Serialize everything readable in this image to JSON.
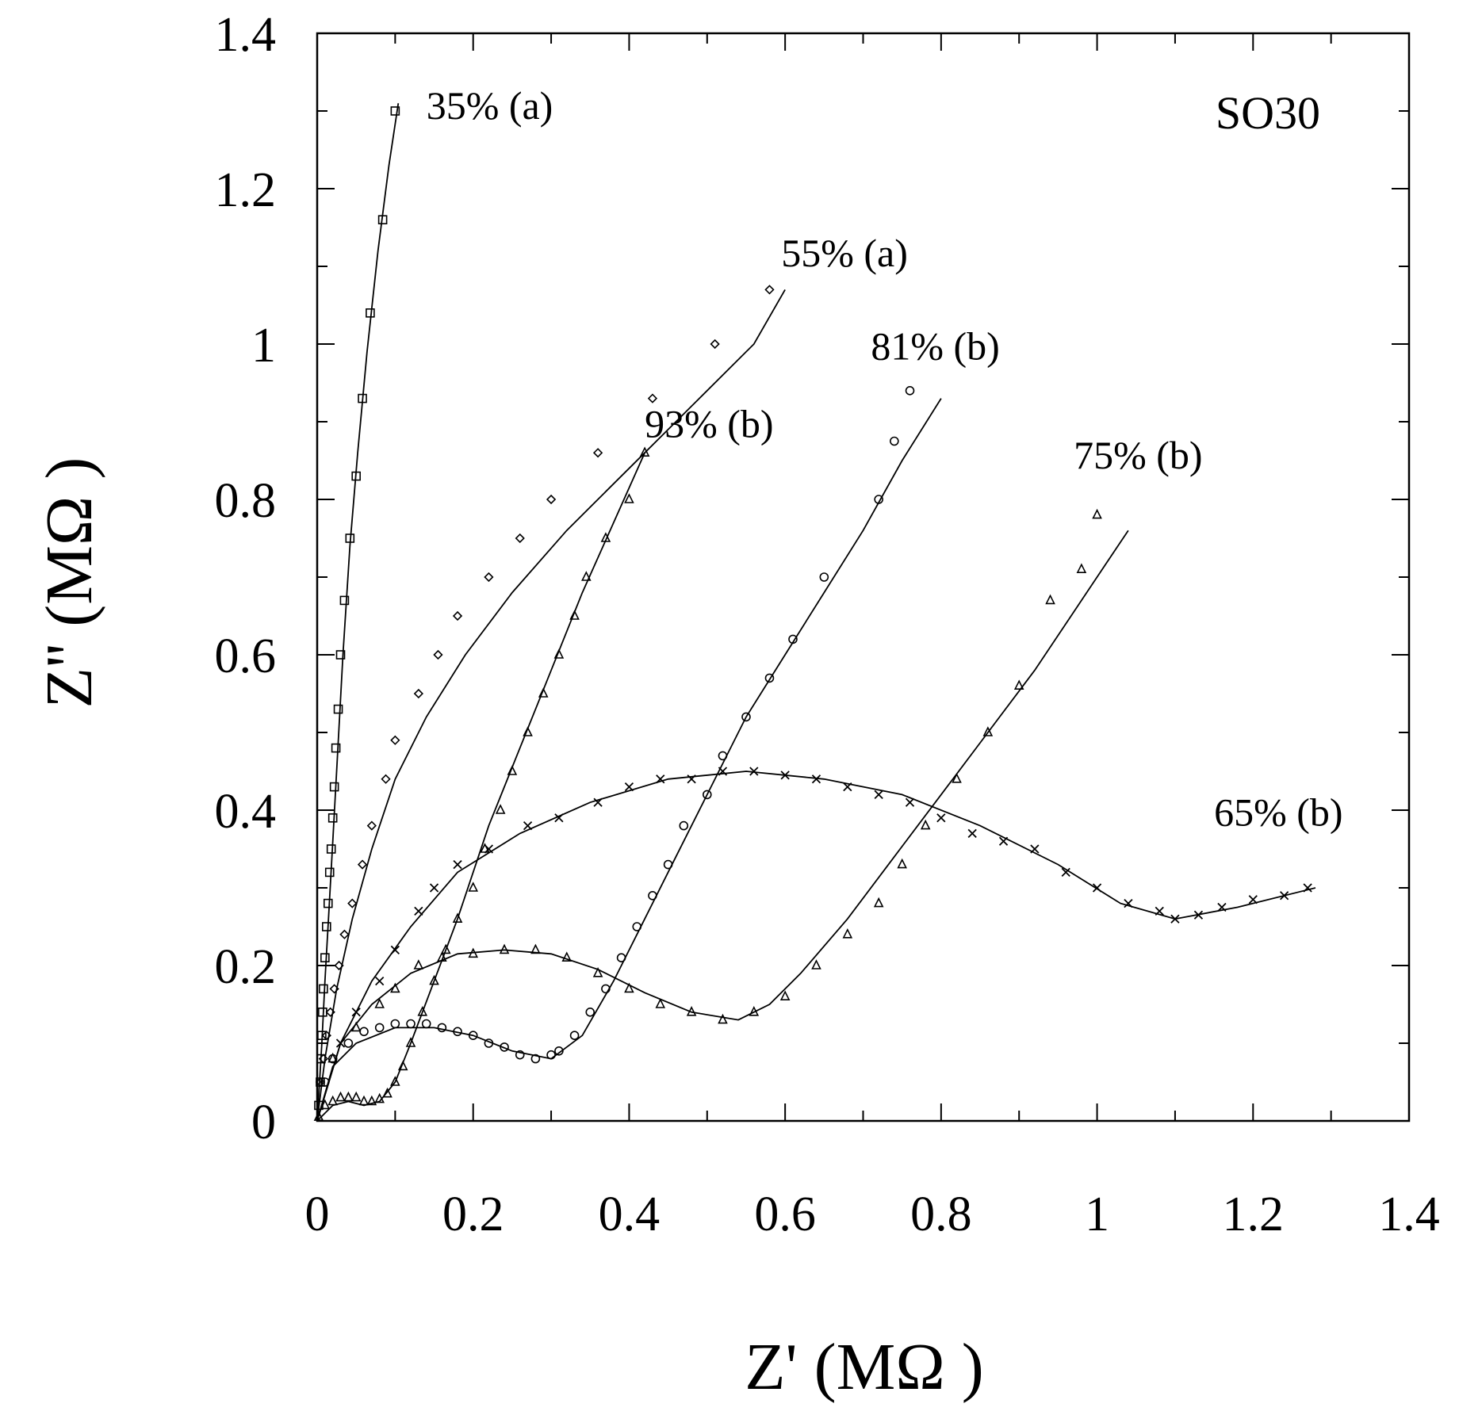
{
  "chart_data": {
    "type": "scatter",
    "title": "",
    "panel_label": "SO30",
    "xlabel": "Z' (MΩ )",
    "ylabel": "Z'' (MΩ )",
    "xlim": [
      0,
      1.4
    ],
    "ylim": [
      0,
      1.4
    ],
    "grid": false,
    "x_ticks": [
      0,
      0.2,
      0.4,
      0.6,
      0.8,
      1,
      1.2,
      1.4
    ],
    "x_tick_labels": [
      "0",
      "0.2",
      "0.4",
      "0.6",
      "0.8",
      "1",
      "1.2",
      "1.4"
    ],
    "y_ticks": [
      0,
      0.2,
      0.4,
      0.6,
      0.8,
      1,
      1.2,
      1.4
    ],
    "y_tick_labels": [
      "0",
      "0.2",
      "0.4",
      "0.6",
      "0.8",
      "1",
      "1.2",
      "1.4"
    ],
    "series": [
      {
        "name": "35% (a)",
        "marker": "square",
        "label_anchor": [
          0.14,
          1.29
        ],
        "points": [
          [
            0.002,
            0.02
          ],
          [
            0.004,
            0.05
          ],
          [
            0.005,
            0.08
          ],
          [
            0.006,
            0.11
          ],
          [
            0.007,
            0.14
          ],
          [
            0.008,
            0.17
          ],
          [
            0.01,
            0.21
          ],
          [
            0.012,
            0.25
          ],
          [
            0.014,
            0.28
          ],
          [
            0.016,
            0.32
          ],
          [
            0.018,
            0.35
          ],
          [
            0.02,
            0.39
          ],
          [
            0.022,
            0.43
          ],
          [
            0.024,
            0.48
          ],
          [
            0.027,
            0.53
          ],
          [
            0.03,
            0.6
          ],
          [
            0.035,
            0.67
          ],
          [
            0.042,
            0.75
          ],
          [
            0.05,
            0.83
          ],
          [
            0.058,
            0.93
          ],
          [
            0.068,
            1.04
          ],
          [
            0.084,
            1.16
          ],
          [
            0.1,
            1.3
          ]
        ],
        "curve": [
          [
            0,
            0
          ],
          [
            0.003,
            0.05
          ],
          [
            0.006,
            0.1
          ],
          [
            0.01,
            0.18
          ],
          [
            0.015,
            0.27
          ],
          [
            0.02,
            0.36
          ],
          [
            0.026,
            0.47
          ],
          [
            0.033,
            0.6
          ],
          [
            0.042,
            0.74
          ],
          [
            0.052,
            0.86
          ],
          [
            0.064,
            0.99
          ],
          [
            0.078,
            1.12
          ],
          [
            0.092,
            1.23
          ],
          [
            0.104,
            1.31
          ]
        ]
      },
      {
        "name": "55% (a)",
        "marker": "diamond",
        "label_anchor": [
          0.595,
          1.1
        ],
        "points": [
          [
            0.004,
            0.05
          ],
          [
            0.008,
            0.08
          ],
          [
            0.012,
            0.11
          ],
          [
            0.017,
            0.14
          ],
          [
            0.022,
            0.17
          ],
          [
            0.028,
            0.2
          ],
          [
            0.035,
            0.24
          ],
          [
            0.045,
            0.28
          ],
          [
            0.058,
            0.33
          ],
          [
            0.07,
            0.38
          ],
          [
            0.088,
            0.44
          ],
          [
            0.1,
            0.49
          ],
          [
            0.13,
            0.55
          ],
          [
            0.155,
            0.6
          ],
          [
            0.18,
            0.65
          ],
          [
            0.22,
            0.7
          ],
          [
            0.26,
            0.75
          ],
          [
            0.3,
            0.8
          ],
          [
            0.36,
            0.86
          ],
          [
            0.43,
            0.93
          ],
          [
            0.51,
            1.0
          ],
          [
            0.58,
            1.07
          ]
        ],
        "curve": [
          [
            0,
            0
          ],
          [
            0.01,
            0.08
          ],
          [
            0.025,
            0.17
          ],
          [
            0.045,
            0.26
          ],
          [
            0.07,
            0.35
          ],
          [
            0.1,
            0.44
          ],
          [
            0.14,
            0.52
          ],
          [
            0.19,
            0.6
          ],
          [
            0.25,
            0.68
          ],
          [
            0.32,
            0.76
          ],
          [
            0.4,
            0.84
          ],
          [
            0.48,
            0.92
          ],
          [
            0.56,
            1.0
          ],
          [
            0.6,
            1.07
          ]
        ]
      },
      {
        "name": "93% (b)",
        "marker": "triangle",
        "label_anchor": [
          0.42,
          0.88
        ],
        "points": [
          [
            0.002,
            0.005
          ],
          [
            0.01,
            0.02
          ],
          [
            0.02,
            0.025
          ],
          [
            0.03,
            0.03
          ],
          [
            0.04,
            0.03
          ],
          [
            0.05,
            0.03
          ],
          [
            0.06,
            0.025
          ],
          [
            0.07,
            0.025
          ],
          [
            0.08,
            0.028
          ],
          [
            0.09,
            0.035
          ],
          [
            0.1,
            0.05
          ],
          [
            0.11,
            0.07
          ],
          [
            0.12,
            0.1
          ],
          [
            0.135,
            0.14
          ],
          [
            0.15,
            0.18
          ],
          [
            0.165,
            0.22
          ],
          [
            0.18,
            0.26
          ],
          [
            0.2,
            0.3
          ],
          [
            0.215,
            0.35
          ],
          [
            0.235,
            0.4
          ],
          [
            0.25,
            0.45
          ],
          [
            0.27,
            0.5
          ],
          [
            0.29,
            0.55
          ],
          [
            0.31,
            0.6
          ],
          [
            0.33,
            0.65
          ],
          [
            0.345,
            0.7
          ],
          [
            0.37,
            0.75
          ],
          [
            0.4,
            0.8
          ],
          [
            0.42,
            0.86
          ]
        ],
        "curve": [
          [
            0,
            0
          ],
          [
            0.02,
            0.02
          ],
          [
            0.04,
            0.025
          ],
          [
            0.06,
            0.02
          ],
          [
            0.08,
            0.025
          ],
          [
            0.1,
            0.05
          ],
          [
            0.12,
            0.1
          ],
          [
            0.15,
            0.18
          ],
          [
            0.18,
            0.26
          ],
          [
            0.22,
            0.38
          ],
          [
            0.26,
            0.48
          ],
          [
            0.3,
            0.58
          ],
          [
            0.34,
            0.68
          ],
          [
            0.38,
            0.77
          ],
          [
            0.42,
            0.86
          ]
        ]
      },
      {
        "name": "81% (b)",
        "marker": "circle",
        "label_anchor": [
          0.71,
          0.98
        ],
        "points": [
          [
            0.01,
            0.05
          ],
          [
            0.02,
            0.08
          ],
          [
            0.04,
            0.1
          ],
          [
            0.06,
            0.115
          ],
          [
            0.08,
            0.12
          ],
          [
            0.1,
            0.125
          ],
          [
            0.12,
            0.125
          ],
          [
            0.14,
            0.125
          ],
          [
            0.16,
            0.12
          ],
          [
            0.18,
            0.115
          ],
          [
            0.2,
            0.11
          ],
          [
            0.22,
            0.1
          ],
          [
            0.24,
            0.095
          ],
          [
            0.26,
            0.085
          ],
          [
            0.28,
            0.08
          ],
          [
            0.3,
            0.085
          ],
          [
            0.31,
            0.09
          ],
          [
            0.33,
            0.11
          ],
          [
            0.35,
            0.14
          ],
          [
            0.37,
            0.17
          ],
          [
            0.39,
            0.21
          ],
          [
            0.41,
            0.25
          ],
          [
            0.43,
            0.29
          ],
          [
            0.45,
            0.33
          ],
          [
            0.47,
            0.38
          ],
          [
            0.5,
            0.42
          ],
          [
            0.52,
            0.47
          ],
          [
            0.55,
            0.52
          ],
          [
            0.58,
            0.57
          ],
          [
            0.61,
            0.62
          ],
          [
            0.65,
            0.7
          ],
          [
            0.72,
            0.8
          ],
          [
            0.74,
            0.875
          ],
          [
            0.76,
            0.94
          ]
        ],
        "curve": [
          [
            0,
            0
          ],
          [
            0.02,
            0.07
          ],
          [
            0.05,
            0.1
          ],
          [
            0.1,
            0.12
          ],
          [
            0.15,
            0.12
          ],
          [
            0.2,
            0.11
          ],
          [
            0.25,
            0.09
          ],
          [
            0.3,
            0.08
          ],
          [
            0.34,
            0.11
          ],
          [
            0.38,
            0.18
          ],
          [
            0.42,
            0.26
          ],
          [
            0.46,
            0.34
          ],
          [
            0.5,
            0.42
          ],
          [
            0.55,
            0.52
          ],
          [
            0.6,
            0.6
          ],
          [
            0.65,
            0.68
          ],
          [
            0.7,
            0.76
          ],
          [
            0.75,
            0.85
          ],
          [
            0.8,
            0.93
          ]
        ]
      },
      {
        "name": "75% (b)",
        "marker": "triangle",
        "label_anchor": [
          0.97,
          0.84
        ],
        "points": [
          [
            0.02,
            0.08
          ],
          [
            0.05,
            0.12
          ],
          [
            0.08,
            0.15
          ],
          [
            0.1,
            0.17
          ],
          [
            0.13,
            0.2
          ],
          [
            0.16,
            0.21
          ],
          [
            0.2,
            0.215
          ],
          [
            0.24,
            0.22
          ],
          [
            0.28,
            0.22
          ],
          [
            0.32,
            0.21
          ],
          [
            0.36,
            0.19
          ],
          [
            0.4,
            0.17
          ],
          [
            0.44,
            0.15
          ],
          [
            0.48,
            0.14
          ],
          [
            0.52,
            0.13
          ],
          [
            0.56,
            0.14
          ],
          [
            0.6,
            0.16
          ],
          [
            0.64,
            0.2
          ],
          [
            0.68,
            0.24
          ],
          [
            0.72,
            0.28
          ],
          [
            0.75,
            0.33
          ],
          [
            0.78,
            0.38
          ],
          [
            0.82,
            0.44
          ],
          [
            0.86,
            0.5
          ],
          [
            0.9,
            0.56
          ],
          [
            0.94,
            0.67
          ],
          [
            0.98,
            0.71
          ],
          [
            1.0,
            0.78
          ]
        ],
        "curve": [
          [
            0,
            0
          ],
          [
            0.03,
            0.1
          ],
          [
            0.07,
            0.15
          ],
          [
            0.12,
            0.19
          ],
          [
            0.18,
            0.215
          ],
          [
            0.24,
            0.22
          ],
          [
            0.3,
            0.215
          ],
          [
            0.36,
            0.195
          ],
          [
            0.42,
            0.165
          ],
          [
            0.48,
            0.14
          ],
          [
            0.54,
            0.13
          ],
          [
            0.58,
            0.15
          ],
          [
            0.62,
            0.19
          ],
          [
            0.68,
            0.26
          ],
          [
            0.74,
            0.34
          ],
          [
            0.8,
            0.42
          ],
          [
            0.86,
            0.5
          ],
          [
            0.92,
            0.58
          ],
          [
            0.98,
            0.67
          ],
          [
            1.04,
            0.76
          ]
        ]
      },
      {
        "name": "65% (b)",
        "marker": "x",
        "label_anchor": [
          1.15,
          0.38
        ],
        "points": [
          [
            0.03,
            0.1
          ],
          [
            0.05,
            0.14
          ],
          [
            0.08,
            0.18
          ],
          [
            0.1,
            0.22
          ],
          [
            0.13,
            0.27
          ],
          [
            0.15,
            0.3
          ],
          [
            0.18,
            0.33
          ],
          [
            0.22,
            0.35
          ],
          [
            0.27,
            0.38
          ],
          [
            0.31,
            0.39
          ],
          [
            0.36,
            0.41
          ],
          [
            0.4,
            0.43
          ],
          [
            0.44,
            0.44
          ],
          [
            0.48,
            0.44
          ],
          [
            0.52,
            0.45
          ],
          [
            0.56,
            0.45
          ],
          [
            0.6,
            0.445
          ],
          [
            0.64,
            0.44
          ],
          [
            0.68,
            0.43
          ],
          [
            0.72,
            0.42
          ],
          [
            0.76,
            0.41
          ],
          [
            0.8,
            0.39
          ],
          [
            0.84,
            0.37
          ],
          [
            0.88,
            0.36
          ],
          [
            0.92,
            0.35
          ],
          [
            0.96,
            0.32
          ],
          [
            1.0,
            0.3
          ],
          [
            1.04,
            0.28
          ],
          [
            1.08,
            0.27
          ],
          [
            1.1,
            0.26
          ],
          [
            1.13,
            0.265
          ],
          [
            1.16,
            0.275
          ],
          [
            1.2,
            0.285
          ],
          [
            1.24,
            0.29
          ],
          [
            1.27,
            0.3
          ]
        ],
        "curve": [
          [
            0,
            0
          ],
          [
            0.03,
            0.1
          ],
          [
            0.07,
            0.18
          ],
          [
            0.12,
            0.25
          ],
          [
            0.18,
            0.32
          ],
          [
            0.26,
            0.37
          ],
          [
            0.35,
            0.41
          ],
          [
            0.45,
            0.44
          ],
          [
            0.55,
            0.45
          ],
          [
            0.65,
            0.44
          ],
          [
            0.75,
            0.42
          ],
          [
            0.85,
            0.38
          ],
          [
            0.95,
            0.33
          ],
          [
            1.03,
            0.28
          ],
          [
            1.1,
            0.26
          ],
          [
            1.18,
            0.275
          ],
          [
            1.28,
            0.3
          ]
        ]
      }
    ]
  }
}
